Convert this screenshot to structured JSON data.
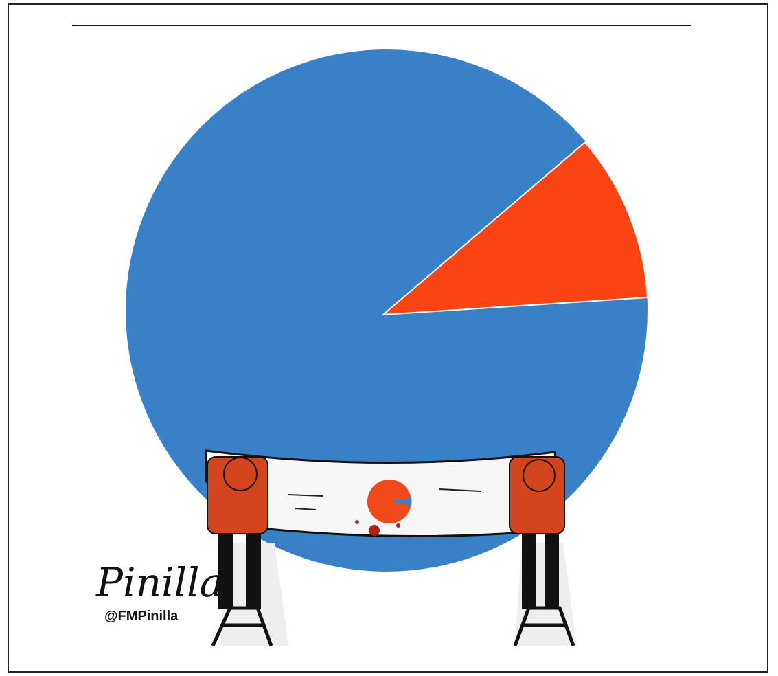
{
  "signature": "Pinilla",
  "handle": "@FMPinilla"
}
